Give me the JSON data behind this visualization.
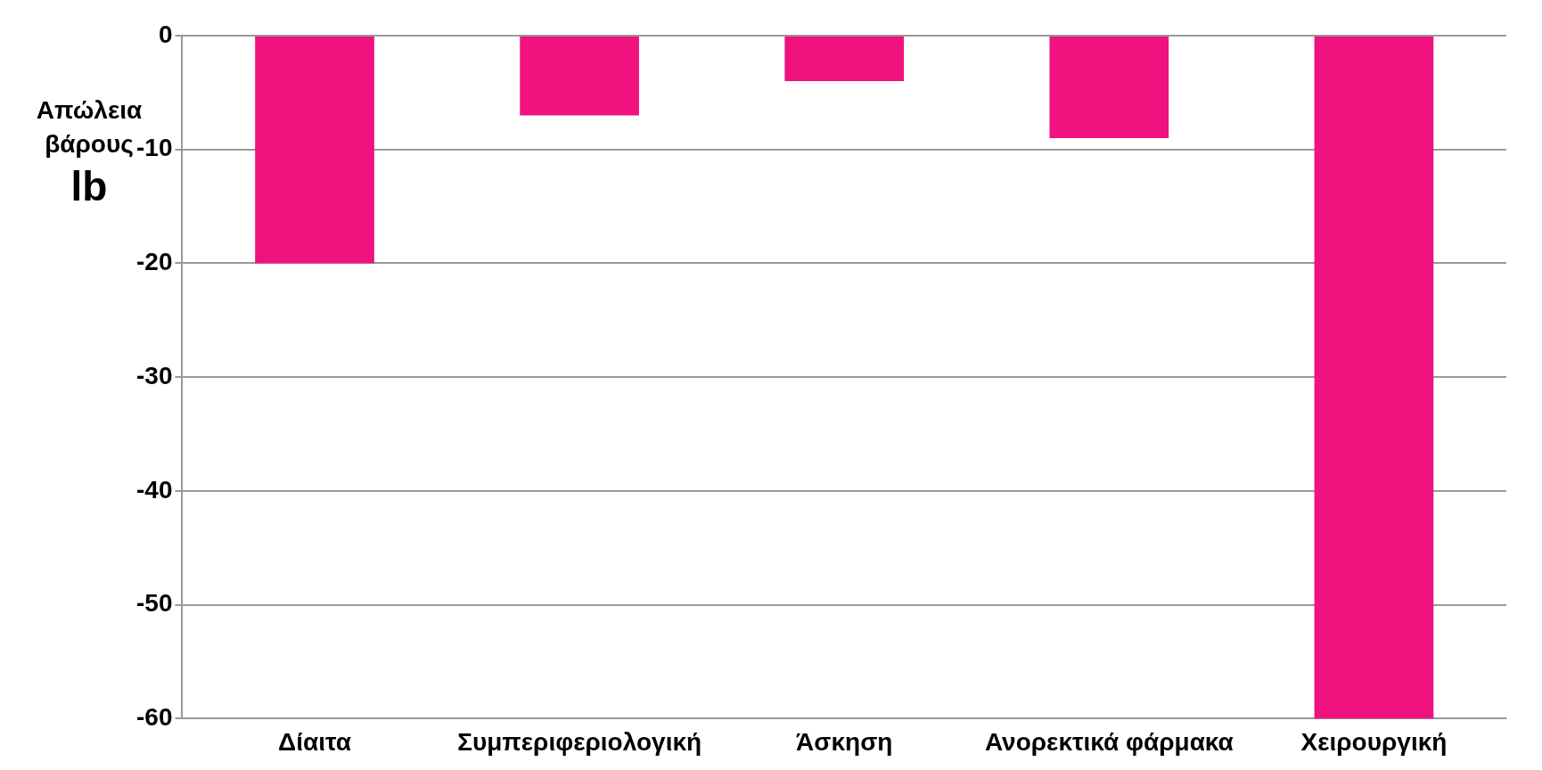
{
  "chart_data": {
    "type": "bar",
    "categories": [
      "Δίαιτα",
      "Συμπεριφεριολογική",
      "Άσκηση",
      "Ανορεκτικά φάρμακα",
      "Χειρουργική"
    ],
    "values": [
      -20,
      -7,
      -4,
      -9,
      -60
    ],
    "color": "#f0127f",
    "ylabel": "Απώλεια βάρους lb",
    "ylim": [
      -60,
      0
    ],
    "yticks": [
      -60,
      -50,
      -40,
      -30,
      -20,
      -10,
      0
    ],
    "grid": "y"
  }
}
